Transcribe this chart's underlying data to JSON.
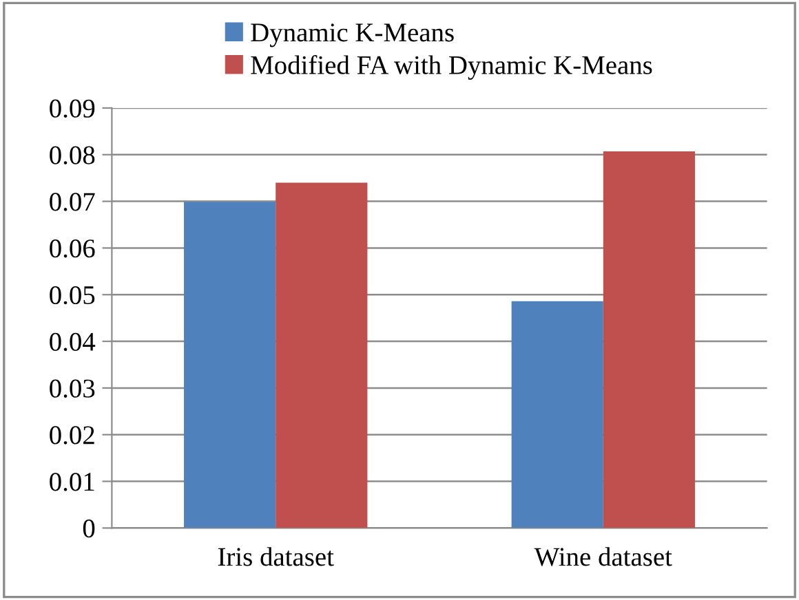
{
  "chart_data": {
    "type": "bar",
    "categories": [
      "Iris dataset",
      "Wine dataset"
    ],
    "series": [
      {
        "name": "Dynamic K-Means",
        "color": "#4f81bd",
        "values": [
          0.0699,
          0.0486
        ]
      },
      {
        "name": "Modified FA with Dynamic K-Means",
        "color": "#c0504d",
        "values": [
          0.074,
          0.0807
        ]
      }
    ],
    "ylim": [
      0,
      0.09
    ],
    "yticks": [
      {
        "value": 0,
        "label": "0"
      },
      0.01,
      0.02,
      0.03,
      0.04,
      0.05,
      0.06,
      0.07,
      0.08,
      0.09
    ],
    "grid": "y",
    "legend": "top"
  }
}
